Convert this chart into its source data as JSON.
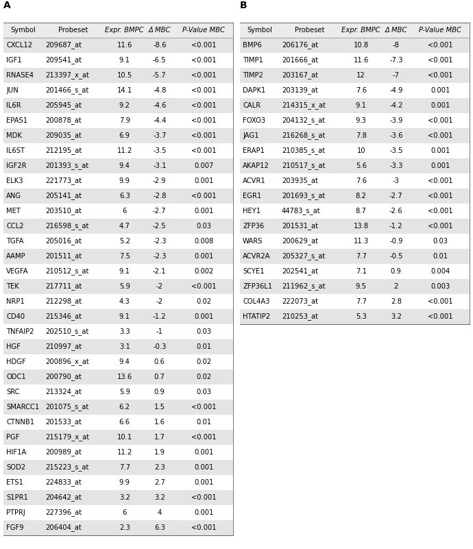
{
  "table_A": {
    "headers": [
      "Symbol",
      "Probeset",
      "Expr. BMPC",
      "Δ MBC",
      "P-Value MBC"
    ],
    "rows": [
      [
        "CXCL12",
        "209687_at",
        "11.6",
        "-8.6",
        "<0.001"
      ],
      [
        "IGF1",
        "209541_at",
        "9.1",
        "-6.5",
        "<0.001"
      ],
      [
        "RNASE4",
        "213397_x_at",
        "10.5",
        "-5.7",
        "<0.001"
      ],
      [
        "JUN",
        "201466_s_at",
        "14.1",
        "-4.8",
        "<0.001"
      ],
      [
        "IL6R",
        "205945_at",
        "9.2",
        "-4.6",
        "<0.001"
      ],
      [
        "EPAS1",
        "200878_at",
        "7.9",
        "-4.4",
        "<0.001"
      ],
      [
        "MDK",
        "209035_at",
        "6.9",
        "-3.7",
        "<0.001"
      ],
      [
        "IL6ST",
        "212195_at",
        "11.2",
        "-3.5",
        "<0.001"
      ],
      [
        "IGF2R",
        "201393_s_at",
        "9.4",
        "-3.1",
        "0.007"
      ],
      [
        "ELK3",
        "221773_at",
        "9.9",
        "-2.9",
        "0.001"
      ],
      [
        "ANG",
        "205141_at",
        "6.3",
        "-2.8",
        "<0.001"
      ],
      [
        "MET",
        "203510_at",
        "6",
        "-2.7",
        "0.001"
      ],
      [
        "CCL2",
        "216598_s_at",
        "4.7",
        "-2.5",
        "0.03"
      ],
      [
        "TGFA",
        "205016_at",
        "5.2",
        "-2.3",
        "0.008"
      ],
      [
        "AAMP",
        "201511_at",
        "7.5",
        "-2.3",
        "0.001"
      ],
      [
        "VEGFA",
        "210512_s_at",
        "9.1",
        "-2.1",
        "0.002"
      ],
      [
        "TEK",
        "217711_at",
        "5.9",
        "-2",
        "<0.001"
      ],
      [
        "NRP1",
        "212298_at",
        "4.3",
        "-2",
        "0.02"
      ],
      [
        "CD40",
        "215346_at",
        "9.1",
        "-1.2",
        "0.001"
      ],
      [
        "TNFAIP2",
        "202510_s_at",
        "3.3",
        "-1",
        "0.03"
      ],
      [
        "HGF",
        "210997_at",
        "3.1",
        "-0.3",
        "0.01"
      ],
      [
        "HDGF",
        "200896_x_at",
        "9.4",
        "0.6",
        "0.02"
      ],
      [
        "ODC1",
        "200790_at",
        "13.6",
        "0.7",
        "0.02"
      ],
      [
        "SRC",
        "213324_at",
        "5.9",
        "0.9",
        "0.03"
      ],
      [
        "SMARCC1",
        "201075_s_at",
        "6.2",
        "1.5",
        "<0.001"
      ],
      [
        "CTNNB1",
        "201533_at",
        "6.6",
        "1.6",
        "0.01"
      ],
      [
        "PGF",
        "215179_x_at",
        "10.1",
        "1.7",
        "<0.001"
      ],
      [
        "HIF1A",
        "200989_at",
        "11.2",
        "1.9",
        "0.001"
      ],
      [
        "SOD2",
        "215223_s_at",
        "7.7",
        "2.3",
        "0.001"
      ],
      [
        "ETS1",
        "224833_at",
        "9.9",
        "2.7",
        "0.001"
      ],
      [
        "S1PR1",
        "204642_at",
        "3.2",
        "3.2",
        "<0.001"
      ],
      [
        "PTPRJ",
        "227396_at",
        "6",
        "4",
        "0.001"
      ],
      [
        "FGF9",
        "206404_at",
        "2.3",
        "6.3",
        "<0.001"
      ]
    ]
  },
  "table_B": {
    "headers": [
      "Symbol",
      "Probeset",
      "Expr. BMPC",
      "Δ MBC",
      "P-Value MBC"
    ],
    "rows": [
      [
        "BMP6",
        "206176_at",
        "10.8",
        "-8",
        "<0.001"
      ],
      [
        "TIMP1",
        "201666_at",
        "11.6",
        "-7.3",
        "<0.001"
      ],
      [
        "TIMP2",
        "203167_at",
        "12",
        "-7",
        "<0.001"
      ],
      [
        "DAPK1",
        "203139_at",
        "7.6",
        "-4.9",
        "0.001"
      ],
      [
        "CALR",
        "214315_x_at",
        "9.1",
        "-4.2",
        "0.001"
      ],
      [
        "FOXO3",
        "204132_s_at",
        "9.3",
        "-3.9",
        "<0.001"
      ],
      [
        "JAG1",
        "216268_s_at",
        "7.8",
        "-3.6",
        "<0.001"
      ],
      [
        "ERAP1",
        "210385_s_at",
        "10",
        "-3.5",
        "0.001"
      ],
      [
        "AKAP12",
        "210517_s_at",
        "5.6",
        "-3.3",
        "0.001"
      ],
      [
        "ACVR1",
        "203935_at",
        "7.6",
        "-3",
        "<0.001"
      ],
      [
        "EGR1",
        "201693_s_at",
        "8.2",
        "-2.7",
        "<0.001"
      ],
      [
        "HEY1",
        "44783_s_at",
        "8.7",
        "-2.6",
        "<0.001"
      ],
      [
        "ZFP36",
        "201531_at",
        "13.8",
        "-1.2",
        "<0.001"
      ],
      [
        "WARS",
        "200629_at",
        "11.3",
        "-0.9",
        "0.03"
      ],
      [
        "ACVR2A",
        "205327_s_at",
        "7.7",
        "-0.5",
        "0.01"
      ],
      [
        "SCYE1",
        "202541_at",
        "7.1",
        "0.9",
        "0.004"
      ],
      [
        "ZFP36L1",
        "211962_s_at",
        "9.5",
        "2",
        "0.003"
      ],
      [
        "COL4A3",
        "222073_at",
        "7.7",
        "2.8",
        "<0.001"
      ],
      [
        "HTATIP2",
        "210253_at",
        "5.3",
        "3.2",
        "<0.001"
      ]
    ]
  },
  "header_bg": "#ebebeb",
  "row_bg_odd": "#e4e4e4",
  "row_bg_even": "#ffffff",
  "text_color": "#000000",
  "font_size": 7.2,
  "header_font_size": 7.2,
  "label_A": "A",
  "label_B": "B",
  "fig_width": 6.9,
  "fig_height": 8.01,
  "dpi": 100
}
